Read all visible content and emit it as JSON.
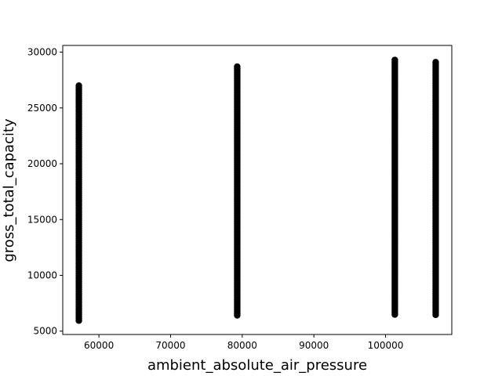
{
  "chart_data": {
    "type": "scatter",
    "title": "",
    "xlabel": "ambient_absolute_air_pressure",
    "ylabel": "gross_total_capacity",
    "xlim": [
      54950,
      109250
    ],
    "ylim": [
      4700,
      30600
    ],
    "xticks": [
      60000,
      70000,
      80000,
      90000,
      100000
    ],
    "xtick_labels": [
      "60000",
      "70000",
      "80000",
      "90000",
      "100000"
    ],
    "yticks": [
      5000,
      10000,
      15000,
      20000,
      25000,
      30000
    ],
    "ytick_labels": [
      "5000",
      "10000",
      "15000",
      "20000",
      "25000",
      "30000"
    ],
    "grid": false,
    "legend": "none",
    "marker_color": "#000000",
    "series": [
      {
        "groups": [
          {
            "x": 57200,
            "y_min": 5900,
            "y_max": 27000
          },
          {
            "x": 79300,
            "y_min": 6300,
            "y_max": 28700
          },
          {
            "x": 101300,
            "y_min": 6400,
            "y_max": 29300
          },
          {
            "x": 107000,
            "y_min": 6400,
            "y_max": 29100
          }
        ]
      }
    ]
  }
}
